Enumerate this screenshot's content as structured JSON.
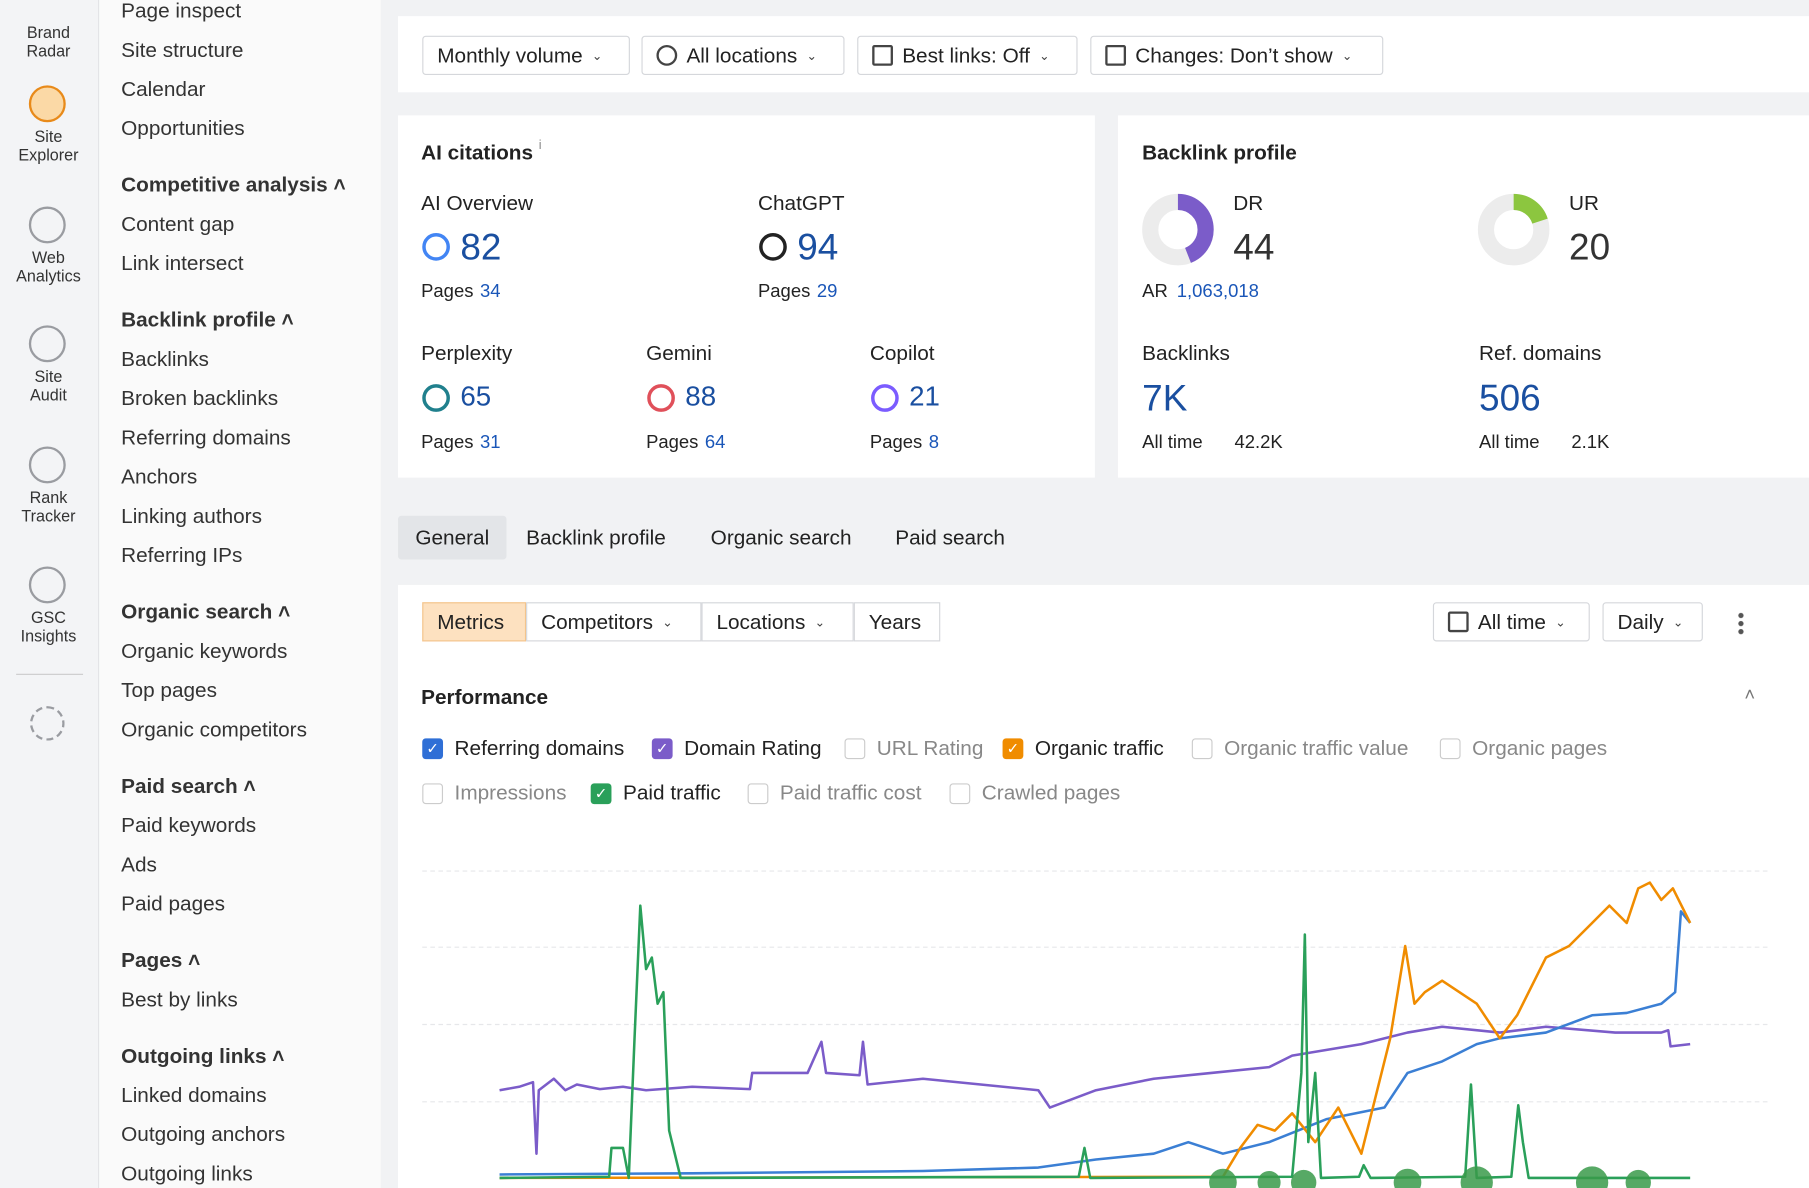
{
  "sidebar": [
    "Brand Radar",
    "Site Explorer",
    "Web Analytics",
    "Site Audit",
    "Rank Tracker",
    "GSC Insights"
  ],
  "nav": {
    "items": [
      "Page inspect",
      "Site structure",
      "Calendar",
      "Opportunities"
    ],
    "groups": [
      {
        "title": "Competitive analysis",
        "items": [
          "Content gap",
          "Link intersect"
        ]
      },
      {
        "title": "Backlink profile",
        "items": [
          "Backlinks",
          "Broken backlinks",
          "Referring domains",
          "Anchors",
          "Linking authors",
          "Referring IPs"
        ]
      },
      {
        "title": "Organic search",
        "items": [
          "Organic keywords",
          "Top pages",
          "Organic competitors"
        ]
      },
      {
        "title": "Paid search",
        "items": [
          "Paid keywords",
          "Ads",
          "Paid pages"
        ]
      },
      {
        "title": "Pages",
        "items": [
          "Best by links"
        ]
      },
      {
        "title": "Outgoing links",
        "items": [
          "Linked domains",
          "Outgoing anchors",
          "Outgoing links"
        ]
      }
    ]
  },
  "filters": [
    "Monthly volume",
    "All locations",
    "Best links: Off",
    "Changes: Don’t show"
  ],
  "ai_citations": {
    "title": "AI citations",
    "pages_label": "Pages",
    "items": [
      {
        "name": "AI Overview",
        "value": 82,
        "pages": 34
      },
      {
        "name": "ChatGPT",
        "value": 94,
        "pages": 29
      },
      {
        "name": "Perplexity",
        "value": 65,
        "pages": 31
      },
      {
        "name": "Gemini",
        "value": 88,
        "pages": 64
      },
      {
        "name": "Copilot",
        "value": 21,
        "pages": 8
      }
    ]
  },
  "backlink_profile": {
    "title": "Backlink profile",
    "dr": {
      "label": "DR",
      "value": 44
    },
    "ar": {
      "label": "AR",
      "value": "1,063,018"
    },
    "ur": {
      "label": "UR",
      "value": 20
    },
    "all_time_label": "All time",
    "backlinks": {
      "label": "Backlinks",
      "value": "7K",
      "all_time": "42.2K"
    },
    "ref_domains": {
      "label": "Ref. domains",
      "value": "506",
      "all_time": "2.1K"
    }
  },
  "tabs": [
    "General",
    "Backlink profile",
    "Organic search",
    "Paid search"
  ],
  "toolbar": {
    "left": [
      "Metrics",
      "Competitors",
      "Locations",
      "Years"
    ],
    "right": [
      "All time",
      "Daily"
    ]
  },
  "performance": {
    "title": "Performance",
    "metrics": [
      {
        "label": "Referring domains",
        "checked": true,
        "color": "#2f6fd6"
      },
      {
        "label": "Domain Rating",
        "checked": true,
        "color": "#7b5cc9"
      },
      {
        "label": "URL Rating",
        "checked": false,
        "color": "#999999"
      },
      {
        "label": "Organic traffic",
        "checked": true,
        "color": "#f08c00"
      },
      {
        "label": "Organic traffic value",
        "checked": false,
        "color": "#999999"
      },
      {
        "label": "Organic pages",
        "checked": false,
        "color": "#999999"
      },
      {
        "label": "Impressions",
        "checked": false,
        "color": "#999999"
      },
      {
        "label": "Paid traffic",
        "checked": true,
        "color": "#2aa05a"
      },
      {
        "label": "Paid traffic cost",
        "checked": false,
        "color": "#999999"
      },
      {
        "label": "Crawled pages",
        "checked": false,
        "color": "#999999"
      }
    ]
  }
}
